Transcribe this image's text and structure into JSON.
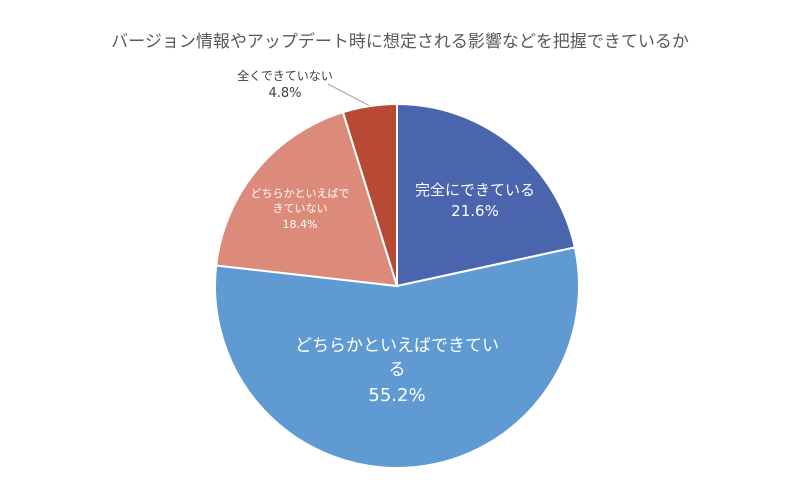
{
  "chart_data": {
    "type": "pie",
    "title": "バージョン情報やアップデート時に想定される影響などを把握できているか",
    "categories": [
      "完全にできている",
      "どちらかといえばできている",
      "どちらかといえばできていない",
      "全くできていない"
    ],
    "values": [
      21.6,
      55.2,
      18.4,
      4.8
    ],
    "value_labels": [
      "21.6%",
      "55.2%",
      "18.4%",
      "4.8%"
    ],
    "colors": [
      "#4a65ad",
      "#5f9bd2",
      "#dc8a7a",
      "#b84a35"
    ]
  }
}
